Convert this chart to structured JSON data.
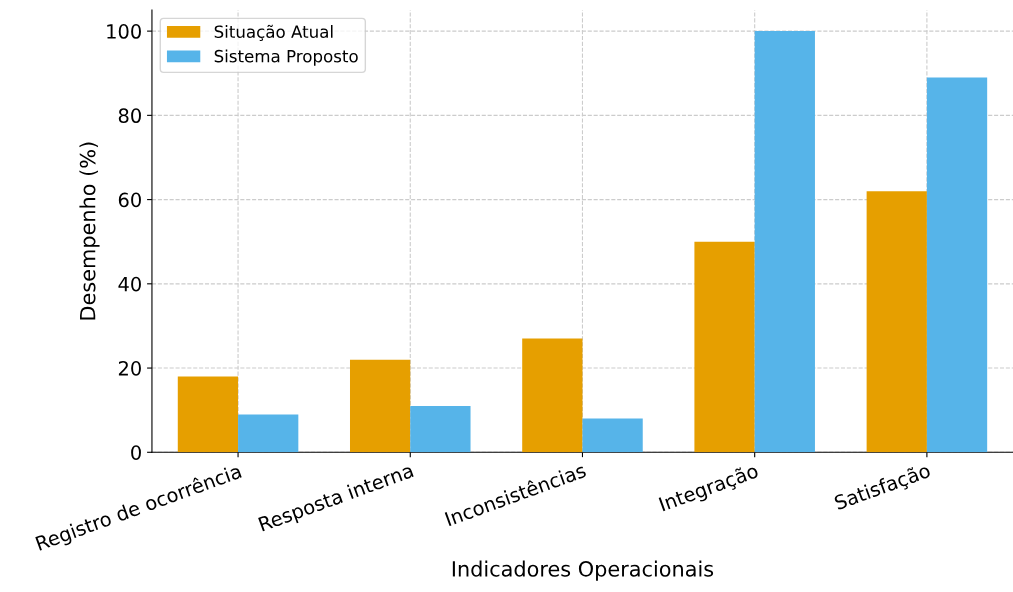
{
  "chart_data": {
    "type": "bar",
    "xlabel": "Indicadores Operacionais",
    "ylabel": "Desempenho (%)",
    "categories": [
      "Registro de ocorrência",
      "Resposta interna",
      "Inconsistências",
      "Integração",
      "Satisfação"
    ],
    "series": [
      {
        "name": "Situação Atual",
        "color": "#e69f00",
        "values": [
          18,
          22,
          27,
          50,
          62
        ]
      },
      {
        "name": "Sistema Proposto",
        "color": "#56b4e9",
        "values": [
          9,
          11,
          8,
          100,
          89
        ]
      }
    ],
    "ylim": [
      0,
      105
    ],
    "yticks": [
      0,
      20,
      40,
      60,
      80,
      100
    ],
    "grid": true,
    "legend": "top left"
  }
}
